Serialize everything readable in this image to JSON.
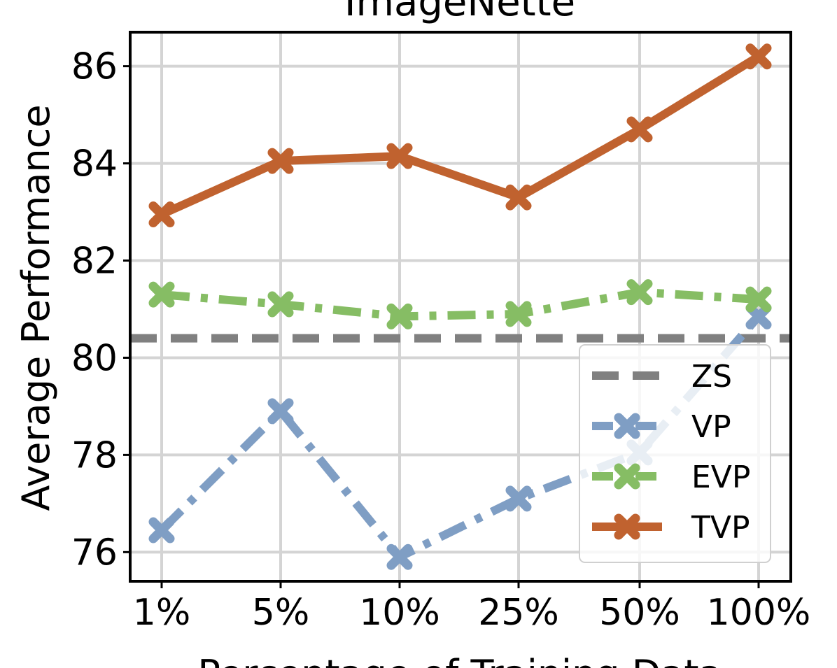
{
  "chart_data": {
    "type": "line",
    "title": "ImageNette",
    "xlabel": "Percentage of Training Data",
    "ylabel": "Average Performance",
    "categories": [
      "1%",
      "5%",
      "10%",
      "25%",
      "50%",
      "100%"
    ],
    "yticks": [
      76,
      78,
      80,
      82,
      84,
      86
    ],
    "ylim": [
      75.4,
      86.7
    ],
    "grid": true,
    "legend_position": "lower-right",
    "reference_lines": [
      {
        "name": "ZS",
        "value": 80.4,
        "color": "#808080",
        "style": "dashed"
      }
    ],
    "series": [
      {
        "name": "VP",
        "color": "#7f9ec4",
        "style": "dashdot",
        "marker": "X",
        "values": [
          76.45,
          78.9,
          75.9,
          77.1,
          78.05,
          80.85
        ]
      },
      {
        "name": "EVP",
        "color": "#86bd64",
        "style": "dashdot",
        "marker": "X",
        "values": [
          81.3,
          81.1,
          80.85,
          80.9,
          81.35,
          81.2
        ]
      },
      {
        "name": "TVP",
        "color": "#c0622f",
        "style": "solid",
        "marker": "X",
        "values": [
          82.95,
          84.05,
          84.15,
          83.3,
          84.7,
          86.2
        ]
      }
    ]
  }
}
